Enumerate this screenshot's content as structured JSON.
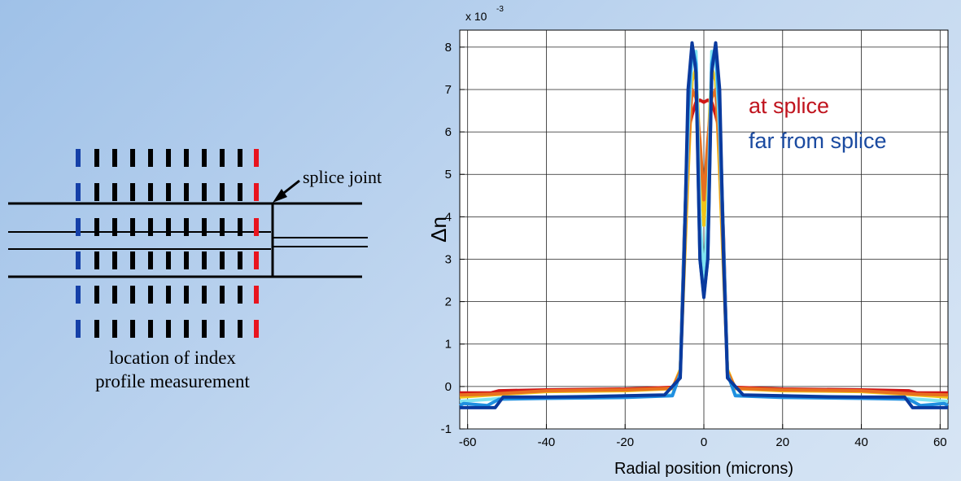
{
  "diagram": {
    "splice_label": "splice joint",
    "caption_line1": "location of index",
    "caption_line2": "profile measurement",
    "colors": {
      "far_marker": "#1540a8",
      "middle_marker": "#000000",
      "splice_marker": "#e8141e"
    }
  },
  "chart_data": {
    "type": "line",
    "xlabel": "Radial position (microns)",
    "ylabel": "Δn",
    "y_exponent_label": "x 10",
    "y_exponent": "-3",
    "xlim": [
      -62,
      62
    ],
    "ylim": [
      -1,
      8.4
    ],
    "xticks": [
      -60,
      -40,
      -20,
      0,
      20,
      40,
      60
    ],
    "yticks": [
      -1,
      0,
      1,
      2,
      3,
      4,
      5,
      6,
      7,
      8
    ],
    "grid": true,
    "annotations": [
      {
        "text": "at splice",
        "color": "#c0141e"
      },
      {
        "text": "far from splice",
        "color": "#1a4aa0"
      }
    ],
    "series": [
      {
        "color": "#d01818",
        "points": [
          [
            -62,
            -0.15
          ],
          [
            -54,
            -0.15
          ],
          [
            -52,
            -0.1
          ],
          [
            -40,
            -0.08
          ],
          [
            -20,
            -0.06
          ],
          [
            -8,
            -0.02
          ],
          [
            -6,
            0.3
          ],
          [
            -5,
            3.5
          ],
          [
            -4,
            6.0
          ],
          [
            -3,
            6.4
          ],
          [
            -2,
            6.7
          ],
          [
            -1,
            6.75
          ],
          [
            0,
            6.7
          ],
          [
            1,
            6.75
          ],
          [
            2,
            6.7
          ],
          [
            3,
            6.4
          ],
          [
            4,
            6.0
          ],
          [
            5,
            3.5
          ],
          [
            6,
            0.3
          ],
          [
            8,
            -0.02
          ],
          [
            20,
            -0.06
          ],
          [
            40,
            -0.08
          ],
          [
            52,
            -0.1
          ],
          [
            54,
            -0.15
          ],
          [
            62,
            -0.15
          ]
        ]
      },
      {
        "color": "#f0c419",
        "points": [
          [
            -62,
            -0.25
          ],
          [
            -54,
            -0.2
          ],
          [
            -40,
            -0.12
          ],
          [
            -20,
            -0.1
          ],
          [
            -8,
            -0.05
          ],
          [
            -6,
            0.4
          ],
          [
            -4,
            5.0
          ],
          [
            -3,
            7.2
          ],
          [
            -2,
            7.5
          ],
          [
            -1,
            5.5
          ],
          [
            0,
            3.8
          ],
          [
            1,
            5.5
          ],
          [
            2,
            7.5
          ],
          [
            3,
            7.2
          ],
          [
            4,
            5.0
          ],
          [
            6,
            0.4
          ],
          [
            8,
            -0.05
          ],
          [
            20,
            -0.1
          ],
          [
            40,
            -0.12
          ],
          [
            54,
            -0.2
          ],
          [
            62,
            -0.25
          ]
        ]
      },
      {
        "color": "#e87020",
        "points": [
          [
            -62,
            -0.2
          ],
          [
            -54,
            -0.18
          ],
          [
            -40,
            -0.1
          ],
          [
            -20,
            -0.08
          ],
          [
            -8,
            -0.04
          ],
          [
            -6,
            0.35
          ],
          [
            -4,
            5.5
          ],
          [
            -3,
            7.0
          ],
          [
            -2,
            6.8
          ],
          [
            -1,
            5.8
          ],
          [
            0,
            4.4
          ],
          [
            1,
            5.8
          ],
          [
            2,
            6.8
          ],
          [
            3,
            7.0
          ],
          [
            4,
            5.5
          ],
          [
            6,
            0.35
          ],
          [
            8,
            -0.04
          ],
          [
            20,
            -0.08
          ],
          [
            40,
            -0.1
          ],
          [
            54,
            -0.18
          ],
          [
            62,
            -0.2
          ]
        ]
      },
      {
        "color": "#7fe3f0",
        "points": [
          [
            -62,
            -0.35
          ],
          [
            -54,
            -0.3
          ],
          [
            -52,
            -0.28
          ],
          [
            -40,
            -0.25
          ],
          [
            -20,
            -0.22
          ],
          [
            -8,
            -0.2
          ],
          [
            -6,
            0.3
          ],
          [
            -4,
            6.0
          ],
          [
            -3,
            7.8
          ],
          [
            -2,
            7.9
          ],
          [
            -1,
            4.0
          ],
          [
            0,
            2.5
          ],
          [
            1,
            4.0
          ],
          [
            2,
            7.9
          ],
          [
            3,
            7.8
          ],
          [
            4,
            6.0
          ],
          [
            6,
            0.3
          ],
          [
            8,
            -0.2
          ],
          [
            20,
            -0.22
          ],
          [
            40,
            -0.25
          ],
          [
            52,
            -0.28
          ],
          [
            54,
            -0.3
          ],
          [
            62,
            -0.35
          ]
        ]
      },
      {
        "color": "#1f8fe0",
        "points": [
          [
            -62,
            -0.45
          ],
          [
            -61,
            -0.4
          ],
          [
            -55,
            -0.45
          ],
          [
            -52,
            -0.3
          ],
          [
            -40,
            -0.28
          ],
          [
            -20,
            -0.26
          ],
          [
            -8,
            -0.22
          ],
          [
            -6,
            0.3
          ],
          [
            -4,
            6.5
          ],
          [
            -3,
            8.05
          ],
          [
            -2,
            7.6
          ],
          [
            -1,
            3.0
          ],
          [
            0,
            2.15
          ],
          [
            1,
            3.0
          ],
          [
            2,
            7.6
          ],
          [
            3,
            8.05
          ],
          [
            4,
            6.5
          ],
          [
            6,
            0.3
          ],
          [
            8,
            -0.22
          ],
          [
            20,
            -0.26
          ],
          [
            40,
            -0.28
          ],
          [
            52,
            -0.3
          ],
          [
            55,
            -0.45
          ],
          [
            61,
            -0.4
          ],
          [
            62,
            -0.45
          ]
        ]
      },
      {
        "color": "#0a3a9e",
        "points": [
          [
            -62,
            -0.5
          ],
          [
            -53,
            -0.5
          ],
          [
            -51,
            -0.25
          ],
          [
            -40,
            -0.25
          ],
          [
            -30,
            -0.24
          ],
          [
            -20,
            -0.22
          ],
          [
            -10,
            -0.2
          ],
          [
            -6,
            0.2
          ],
          [
            -5,
            3.0
          ],
          [
            -4,
            7.0
          ],
          [
            -3,
            8.1
          ],
          [
            -2,
            7.4
          ],
          [
            -1,
            3.0
          ],
          [
            0,
            2.1
          ],
          [
            1,
            3.0
          ],
          [
            2,
            7.4
          ],
          [
            3,
            8.1
          ],
          [
            4,
            7.0
          ],
          [
            5,
            3.0
          ],
          [
            6,
            0.2
          ],
          [
            10,
            -0.2
          ],
          [
            20,
            -0.22
          ],
          [
            30,
            -0.24
          ],
          [
            40,
            -0.25
          ],
          [
            51,
            -0.25
          ],
          [
            53,
            -0.5
          ],
          [
            62,
            -0.5
          ]
        ]
      }
    ]
  }
}
